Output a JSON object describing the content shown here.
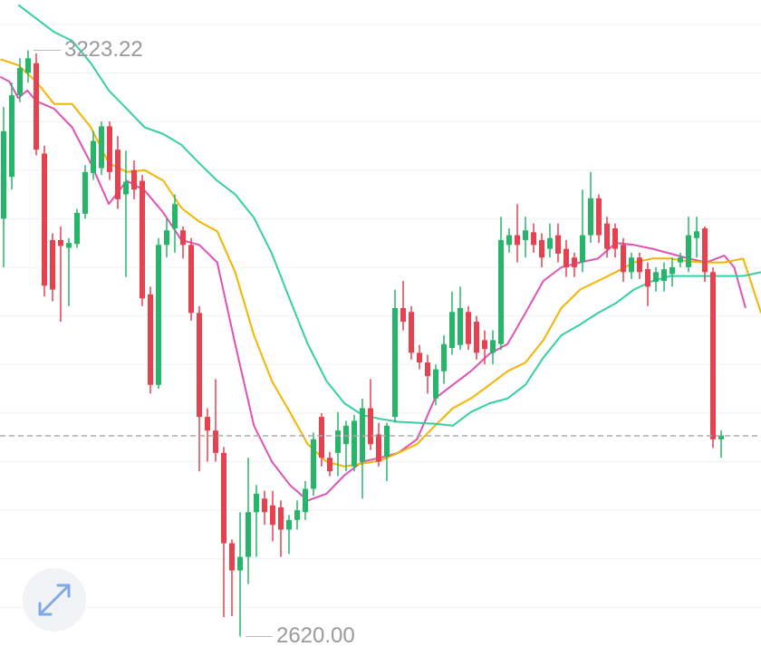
{
  "chart_data": {
    "type": "candlestick",
    "up_color": "#27b56a",
    "down_color": "#e5414f",
    "xlim": [
      -0.444,
      92.889
    ],
    "ylim": [
      2600,
      3275
    ],
    "yticks": [
      2650,
      2700,
      2750,
      2800,
      2850,
      2900,
      2950,
      3000,
      3050,
      3100,
      3150,
      3200,
      3250
    ],
    "grid": true,
    "open": [
      3050,
      3093,
      3177,
      3200,
      3210,
      3117,
      3028,
      3028,
      3020,
      3024,
      3055,
      3097,
      3102,
      3145,
      3121,
      3075,
      3100,
      3089,
      2972,
      2879,
      3023,
      3040,
      3038,
      3023,
      2953,
      2846,
      2832,
      2809,
      2716,
      2688,
      2702,
      2748,
      2762,
      2755,
      2753,
      2730,
      2740,
      2748,
      2772,
      2846,
      2804,
      2809,
      2818,
      2795,
      2800,
      2855,
      2828,
      2805,
      2846,
      2958,
      2954,
      2912,
      2902,
      2865,
      2893,
      2917,
      2920,
      2954,
      2944,
      2925,
      2912,
      2921,
      3023,
      3033,
      3028,
      3036,
      3028,
      3019,
      3033,
      3019,
      3010,
      3005,
      3033,
      3071,
      3045,
      3040,
      3023,
      2995,
      3010,
      2998,
      2985,
      2986,
      2993,
      3005,
      3000,
      3030,
      3040,
      2995,
      2823
    ],
    "high": [
      3165,
      3190,
      3215,
      3223.22,
      3220,
      3125,
      3035,
      3042,
      3030,
      3060,
      3105,
      3140,
      3150,
      3150,
      3135,
      3120,
      3110,
      3095,
      2980,
      3030,
      3050,
      3075,
      3042,
      3030,
      2960,
      2855,
      2885,
      2815,
      2720,
      2748,
      2804,
      2776,
      2770,
      2770,
      2760,
      2745,
      2760,
      2780,
      2830,
      2850,
      2810,
      2851,
      2842,
      2848,
      2865,
      2885,
      2840,
      2840,
      2977,
      2986,
      2960,
      2920,
      2910,
      2900,
      2930,
      2975,
      2980,
      2960,
      2950,
      2935,
      2935,
      3052,
      3040,
      3065,
      3052,
      3045,
      3035,
      3045,
      3045,
      3028,
      3015,
      3080,
      3098,
      3075,
      3052,
      3045,
      3030,
      3015,
      3015,
      3005,
      3000,
      3005,
      3010,
      3015,
      3052,
      3052,
      3042,
      3000,
      2832
    ],
    "low": [
      3000,
      3080,
      3170,
      3190,
      3115,
      2970,
      2965,
      2944,
      2960,
      3020,
      3050,
      3090,
      3095,
      3090,
      3060,
      2990,
      3070,
      2960,
      2870,
      2875,
      3010,
      3015,
      3009,
      2945,
      2790,
      2800,
      2800,
      2640,
      2641,
      2620,
      2674,
      2702,
      2735,
      2718,
      2702,
      2705,
      2730,
      2740,
      2765,
      2795,
      2785,
      2785,
      2790,
      2790,
      2762,
      2812,
      2795,
      2780,
      2840,
      2935,
      2905,
      2895,
      2870,
      2858,
      2880,
      2910,
      2915,
      2915,
      2905,
      2900,
      2900,
      2915,
      3015,
      3005,
      3010,
      3015,
      3000,
      3010,
      3005,
      2990,
      2990,
      2995,
      3025,
      3025,
      3010,
      3010,
      2985,
      2988,
      2988,
      2960,
      2975,
      2975,
      2980,
      3000,
      2995,
      3010,
      2985,
      2814,
      2804
    ],
    "close": [
      3140,
      3177,
      3205,
      3215,
      3121,
      2981,
      2977,
      3022,
      3025,
      3056,
      3098,
      3130,
      3145,
      3098,
      3070,
      3088,
      3080,
      2968,
      2879,
      3023,
      3038,
      3065,
      3023,
      2953,
      2846,
      2832,
      2809,
      2716,
      2688,
      2702,
      2748,
      2767,
      2748,
      2735,
      2730,
      2740,
      2750,
      2772,
      2823,
      2804,
      2790,
      2832,
      2837,
      2842,
      2855,
      2818,
      2800,
      2837,
      2958,
      2944,
      2912,
      2902,
      2888,
      2895,
      2921,
      2954,
      2958,
      2921,
      2912,
      2916,
      2925,
      3028,
      3033,
      3023,
      3038,
      3023,
      3010,
      3030,
      3014,
      3000,
      3000,
      3033,
      3071,
      3033,
      3019,
      3019,
      2995,
      3010,
      2995,
      2980,
      2995,
      2998,
      3000,
      3010,
      3033,
      3037,
      2995,
      2823,
      2827
    ],
    "ma": [
      {
        "color": "#e052b3",
        "x": [
          -0.4,
          0.7,
          1.8,
          2.9,
          4.0,
          6.2,
          8.4,
          10.7,
          12.9,
          15.1,
          17.3,
          19.6,
          21.8,
          24.0,
          26.2,
          28.4,
          30.7,
          32.9,
          35.1,
          37.3,
          39.6,
          41.8,
          44.0,
          46.2,
          48.4,
          50.7,
          52.9,
          55.1,
          57.3,
          59.6,
          61.8,
          64.0,
          66.2,
          68.4,
          70.7,
          72.9,
          75.1,
          77.3,
          79.6,
          81.8,
          84.0,
          86.2,
          88.4,
          89.6,
          91.0
        ],
        "values": [
          3196,
          3191,
          3174,
          3182,
          3171,
          3163,
          3144,
          3107,
          3065,
          3089,
          3079,
          3056,
          3028,
          3023,
          3005,
          2921,
          2837,
          2800,
          2776,
          2760,
          2767,
          2786,
          2800,
          2804,
          2809,
          2823,
          2865,
          2879,
          2893,
          2911,
          2921,
          2953,
          2986,
          3000,
          3005,
          3009,
          3025,
          3023,
          3019,
          3014,
          3009,
          3005,
          3012,
          3000,
          2958
        ]
      },
      {
        "color": "#f5b400",
        "x": [
          -0.4,
          1.8,
          4.0,
          6.2,
          8.4,
          10.7,
          12.9,
          15.1,
          17.3,
          19.6,
          21.8,
          24.0,
          26.2,
          28.4,
          30.7,
          32.9,
          35.1,
          37.3,
          39.6,
          41.8,
          44.0,
          46.2,
          48.4,
          50.7,
          52.9,
          55.1,
          57.3,
          59.6,
          61.8,
          64.0,
          66.2,
          68.4,
          70.7,
          72.9,
          75.1,
          77.3,
          79.6,
          81.8,
          84.0,
          86.2,
          88.4,
          90.7,
          92.9
        ],
        "values": [
          3214,
          3208,
          3191,
          3168,
          3168,
          3144,
          3107,
          3098,
          3100,
          3089,
          3061,
          3047,
          3037,
          2995,
          2930,
          2883,
          2851,
          2818,
          2800,
          2795,
          2798,
          2801,
          2809,
          2818,
          2837,
          2855,
          2865,
          2879,
          2893,
          2902,
          2925,
          2958,
          2977,
          2986,
          2995,
          3005,
          3009,
          3009,
          3006,
          3005,
          3005,
          3009,
          2953
        ]
      },
      {
        "color": "#35cfa6",
        "x": [
          1.8,
          4.0,
          6.2,
          8.4,
          10.7,
          12.9,
          15.1,
          17.3,
          19.6,
          21.8,
          24.0,
          26.2,
          28.4,
          30.7,
          32.9,
          35.1,
          37.3,
          39.6,
          41.8,
          44.0,
          46.2,
          48.4,
          50.7,
          52.9,
          55.1,
          57.3,
          59.6,
          61.8,
          64.0,
          66.2,
          68.4,
          70.7,
          72.9,
          75.1,
          77.3,
          79.6,
          81.8,
          84.0,
          86.2,
          88.4,
          90.7,
          92.9
        ],
        "values": [
          3270,
          3256,
          3242,
          3233,
          3210,
          3182,
          3163,
          3144,
          3137,
          3126,
          3107,
          3089,
          3075,
          3051,
          3014,
          2967,
          2921,
          2883,
          2860,
          2848,
          2844,
          2841,
          2840,
          2839,
          2837,
          2851,
          2860,
          2865,
          2879,
          2907,
          2930,
          2941,
          2953,
          2963,
          2977,
          2986,
          2991,
          2991,
          2991,
          2991,
          2991,
          2995
        ]
      }
    ],
    "last_price": 2826.6,
    "annotations": [
      {
        "value": 3223.22,
        "label": "3223.22"
      },
      {
        "value": 2620,
        "label": "2620.00"
      }
    ]
  }
}
